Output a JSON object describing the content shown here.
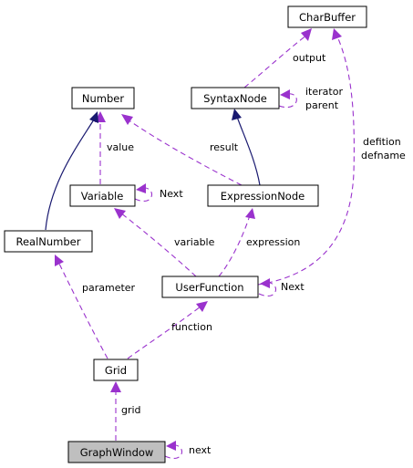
{
  "nodes": {
    "charbuffer": "CharBuffer",
    "number": "Number",
    "syntaxnode": "SyntaxNode",
    "variable": "Variable",
    "expressionnode": "ExpressionNode",
    "realnumber": "RealNumber",
    "userfunction": "UserFunction",
    "grid": "Grid",
    "graphwindow": "GraphWindow"
  },
  "edges": {
    "output": "output",
    "iterator": "iterator",
    "parent": "parent",
    "value": "value",
    "result": "result",
    "variable_next": "Next",
    "defition": "defition",
    "defname": "defname",
    "variable": "variable",
    "expression": "expression",
    "parameter": "parameter",
    "userfunction_next": "Next",
    "function": "function",
    "grid": "grid",
    "next": "next"
  },
  "colors": {
    "inheritance": "#191970",
    "association": "#9a32cd",
    "highlight_fill": "#bfbfbf"
  }
}
